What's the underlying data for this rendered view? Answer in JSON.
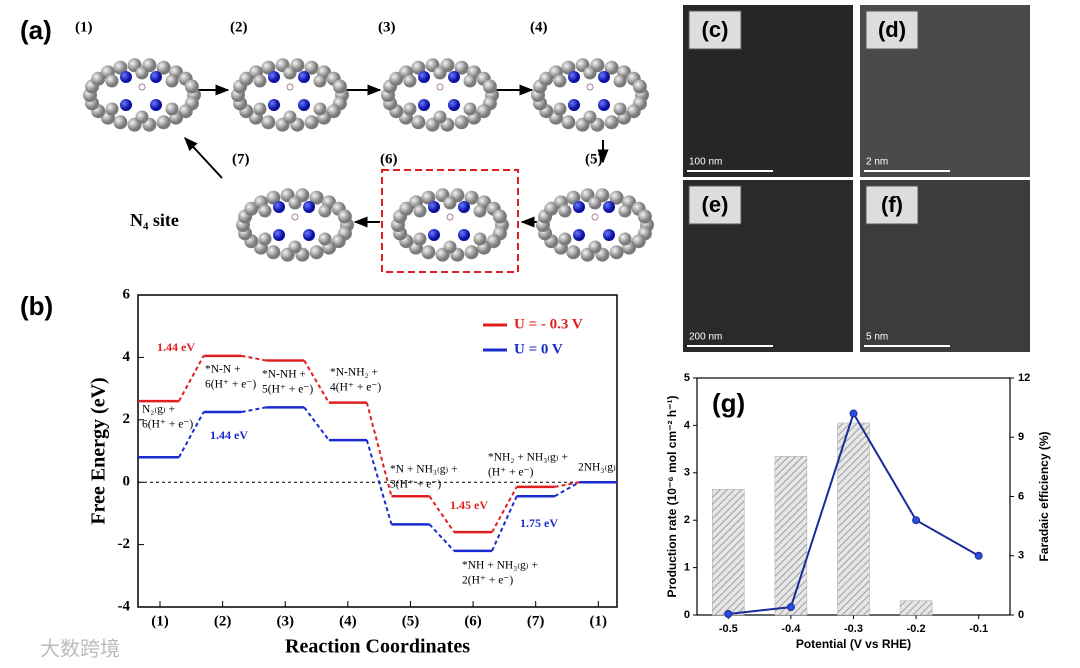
{
  "diagram": {
    "label": "(a)",
    "steps": [
      "(1)",
      "(2)",
      "(3)",
      "(4)",
      "(5)",
      "(6)",
      "(7)"
    ],
    "site_label": "N₄ site"
  },
  "images": [
    {
      "label": "(c)",
      "scale_bar": "100 nm"
    },
    {
      "label": "(d)",
      "scale_bar": "2 nm"
    },
    {
      "label": "(e)",
      "scale_bar": "200 nm"
    },
    {
      "label": "(f)",
      "scale_bar": "5 nm"
    }
  ],
  "watermark": "大数跨境",
  "chart_data": [
    {
      "type": "step",
      "title": "(b)",
      "y_label": "Free Energy (eV)",
      "x_label": "Reaction Coordinates",
      "categories": [
        "(1)",
        "(2)",
        "(3)",
        "(4)",
        "(5)",
        "(6)",
        "(7)",
        "(1)"
      ],
      "series": [
        {
          "name": "U = - 0.3 V",
          "color": "#e02020",
          "values": [
            2.6,
            4.05,
            3.9,
            2.55,
            -0.45,
            -1.6,
            -0.15,
            0
          ]
        },
        {
          "name": "U =  0 V",
          "color": "#1a2bd0",
          "values": [
            0.8,
            2.25,
            2.4,
            1.35,
            -1.35,
            -2.2,
            -0.45,
            0
          ]
        }
      ],
      "ylim": [
        -4,
        6
      ],
      "yticks": [
        -4,
        -2,
        0,
        2,
        4,
        6
      ],
      "legend": "upper right",
      "annotations": [
        {
          "text": "1.44 eV",
          "color": "#e02020"
        },
        {
          "text": "1.44 eV",
          "color": "#1a2bd0"
        },
        {
          "text": "1.45 eV",
          "color": "#e02020"
        },
        {
          "text": "1.75 eV",
          "color": "#1a2bd0"
        }
      ],
      "species": [
        {
          "lines": [
            "N₂₍g₎ +",
            "6(H⁺ + e⁻)"
          ]
        },
        {
          "lines": [
            "*N-N +",
            "6(H⁺ + e⁻)"
          ]
        },
        {
          "lines": [
            "*N-NH +",
            "5(H⁺ + e⁻)"
          ]
        },
        {
          "lines": [
            "*N-NH₂ +",
            "4(H⁺ + e⁻)"
          ]
        },
        {
          "lines": [
            "*N + NH₃₍g₎ +",
            "3(H⁺ + e⁻)"
          ]
        },
        {
          "lines": [
            "*NH + NH₃₍g₎ +",
            "2(H⁺ + e⁻)"
          ]
        },
        {
          "lines": [
            "*NH₂ + NH₃₍g₎ +",
            "(H⁺ + e⁻)"
          ]
        },
        {
          "lines": [
            "2NH₃₍g₎"
          ]
        }
      ]
    },
    {
      "type": "combo",
      "title": "(g)",
      "x_label": "Potential (V vs RHE)",
      "y_label": "Production rate (10⁻⁶ mol cm⁻² h⁻¹)",
      "y2_label": "Faradaic efficiency (%)",
      "categories": [
        "-0.5",
        "-0.4",
        "-0.3",
        "-0.2",
        "-0.1"
      ],
      "series": [
        {
          "type": "bar",
          "color": "#a8a8a8",
          "values": [
            2.65,
            3.35,
            4.05,
            0.3,
            null
          ]
        },
        {
          "type": "line",
          "color": "#1a2b9a",
          "axis": "y2",
          "values": [
            0.05,
            0.4,
            10.2,
            4.8,
            3.0
          ]
        }
      ],
      "ylim": [
        0,
        5
      ],
      "yticks": [
        0,
        1,
        2,
        3,
        4,
        5
      ],
      "y2lim": [
        0,
        12
      ],
      "y2ticks": [
        0,
        3,
        6,
        9,
        12
      ]
    }
  ]
}
